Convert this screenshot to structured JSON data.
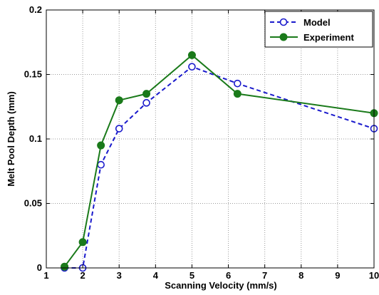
{
  "chart_data": {
    "type": "line",
    "title": "",
    "xlabel": "Scanning Velocity  (mm/s)",
    "ylabel": "Melt Pool Depth (mm)",
    "xlim": [
      1,
      10
    ],
    "ylim": [
      0,
      0.2
    ],
    "x_ticks": [
      1,
      2,
      3,
      4,
      5,
      6,
      7,
      8,
      9,
      10
    ],
    "x_tick_labels": [
      "1",
      "2",
      "3",
      "4",
      "5",
      "6",
      "7",
      "8",
      "9",
      "10"
    ],
    "y_ticks": [
      0,
      0.05,
      0.1,
      0.15,
      0.2
    ],
    "y_tick_labels": [
      "0",
      "0.05",
      "0.1",
      "0.15",
      "0.2"
    ],
    "grid": true,
    "legend_position": "top-right",
    "series": [
      {
        "name": "Model",
        "color": "#1a1acc",
        "line_style": "dashed",
        "marker": "open-circle",
        "x": [
          1.5,
          2,
          2.5,
          3,
          3.75,
          5,
          6.25,
          10
        ],
        "y": [
          0,
          0,
          0.08,
          0.108,
          0.128,
          0.156,
          0.143,
          0.108
        ]
      },
      {
        "name": "Experiment",
        "color": "#1a7a1a",
        "line_style": "solid",
        "marker": "filled-circle",
        "x": [
          1.5,
          2,
          2.5,
          3,
          3.75,
          5,
          6.25,
          10
        ],
        "y": [
          0.001,
          0.02,
          0.095,
          0.13,
          0.135,
          0.165,
          0.135,
          0.12
        ]
      }
    ]
  }
}
